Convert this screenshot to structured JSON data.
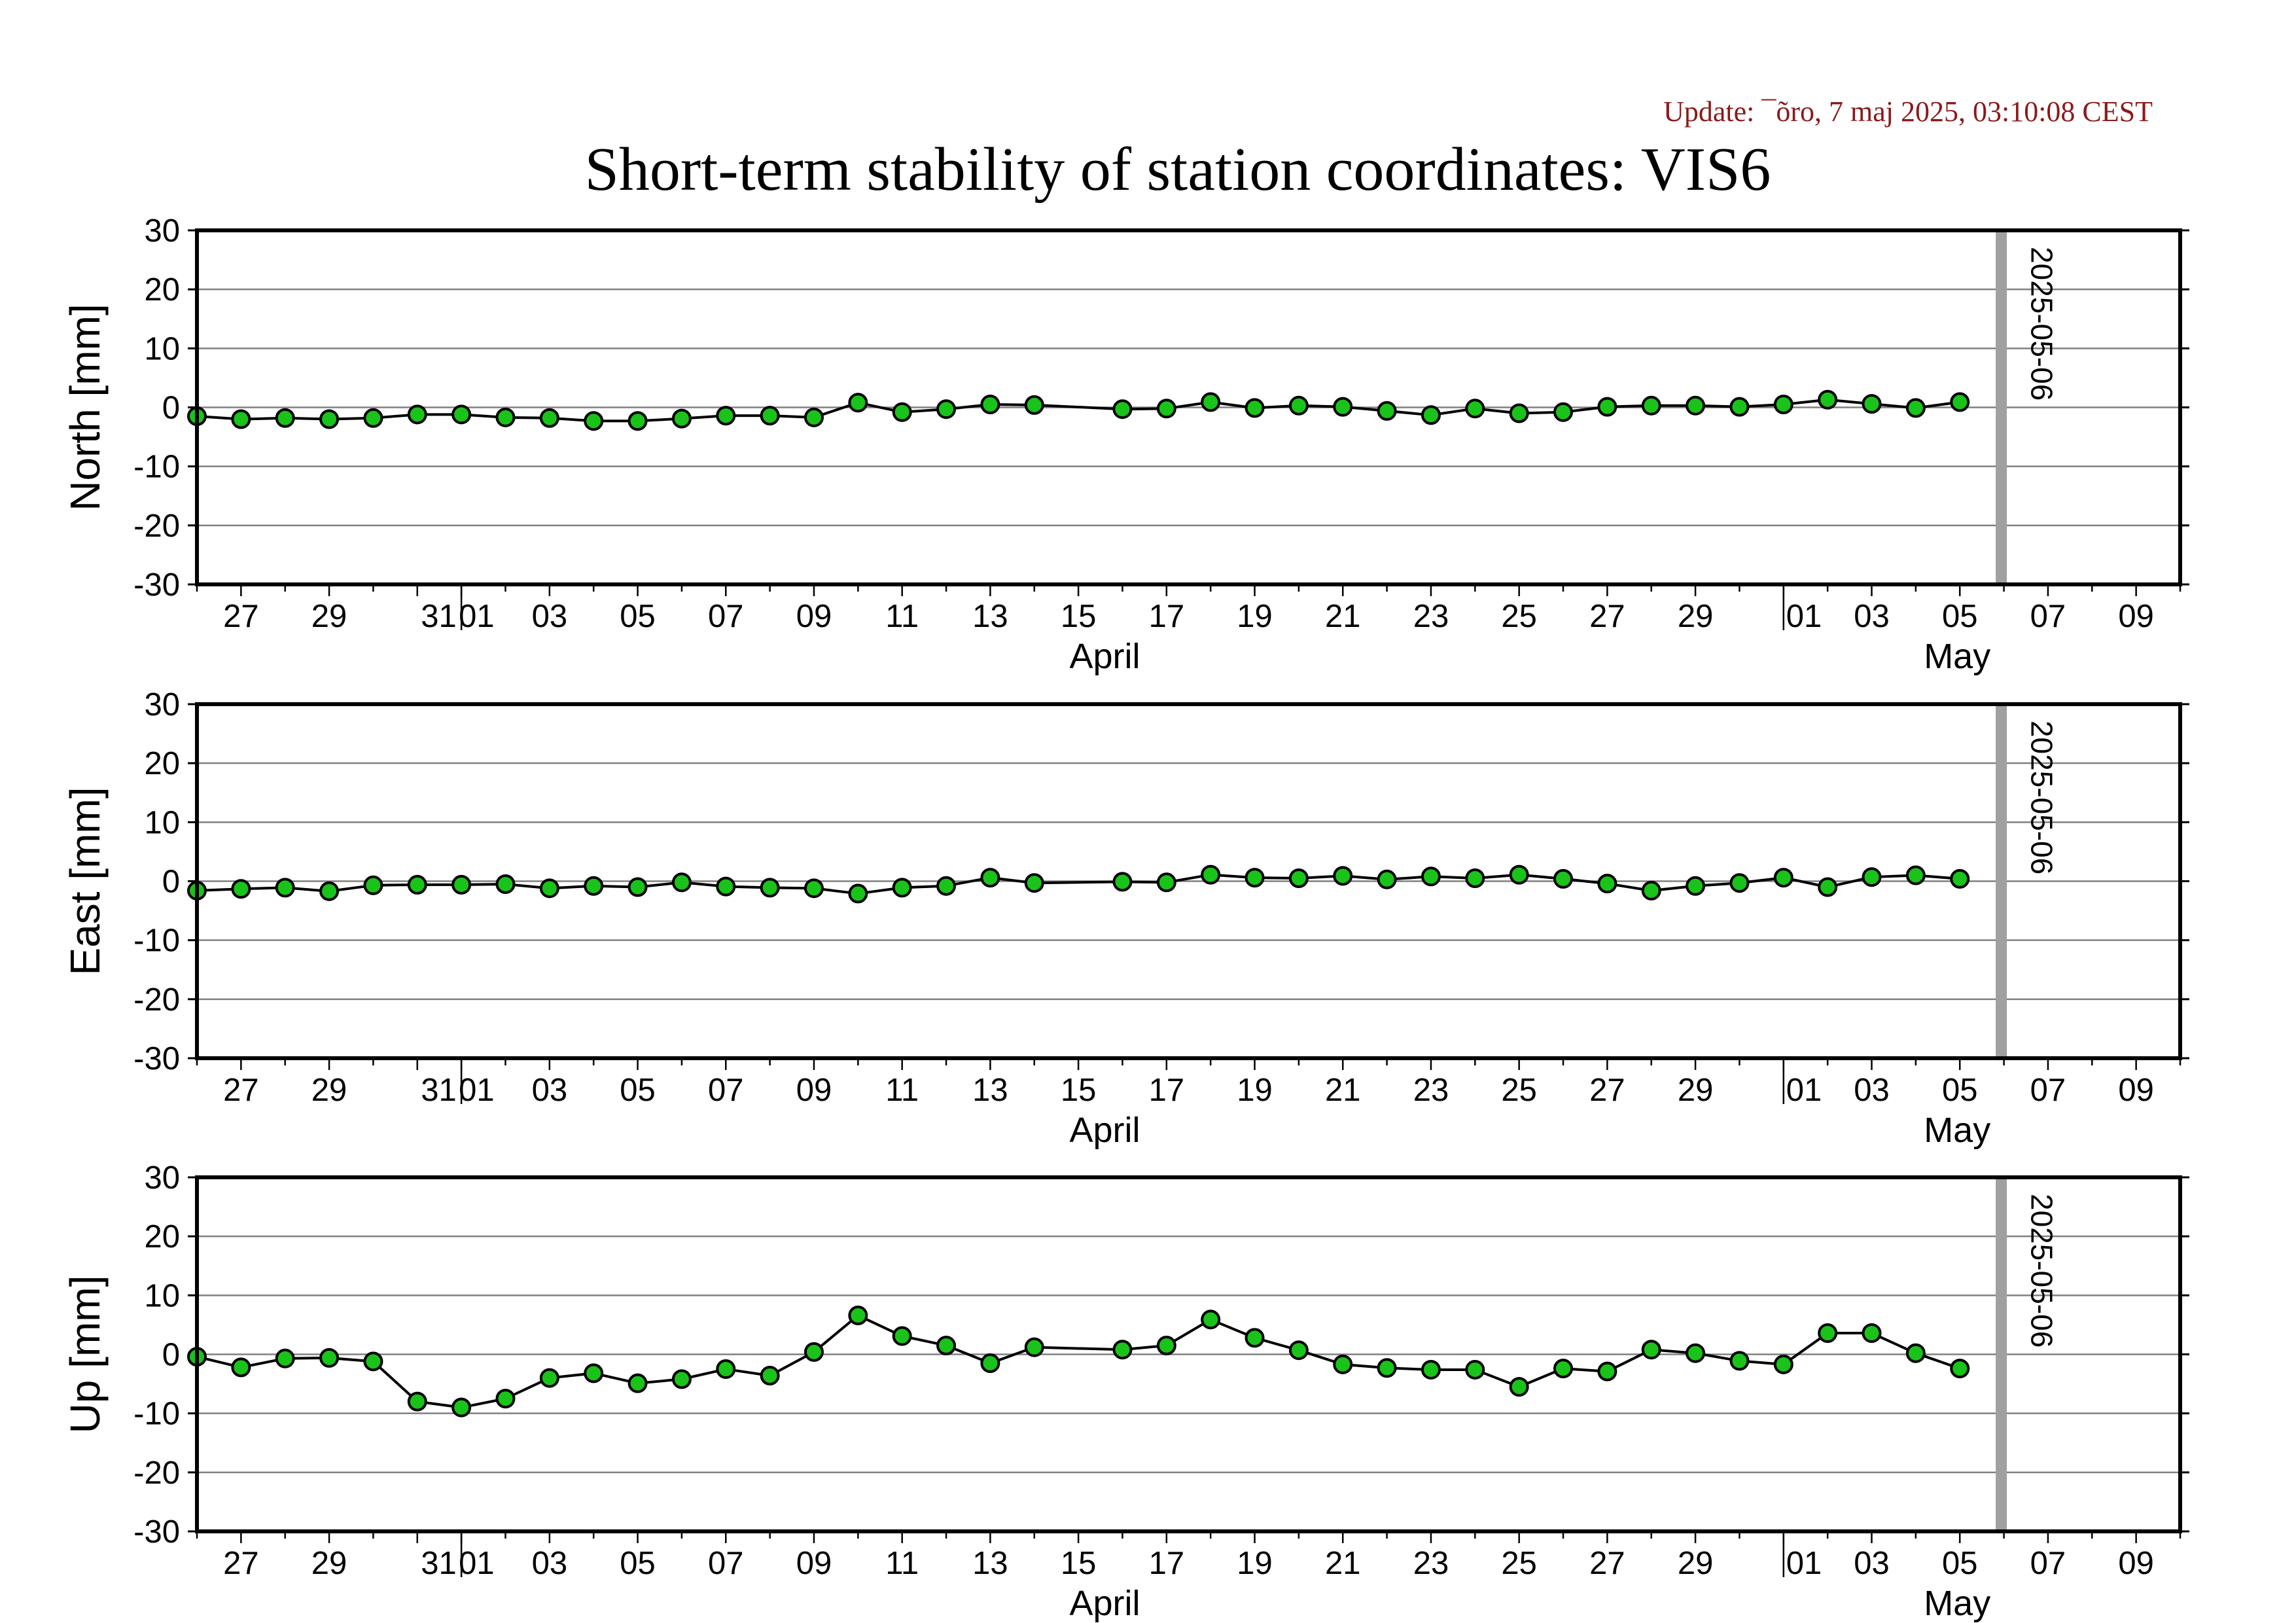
{
  "header": {
    "update_text": "Update: ¯õro, 7 maj 2025, 03:10:08 CEST",
    "title": "Short-term stability of station coordinates: VIS6"
  },
  "colors": {
    "marker_fill": "#19c319",
    "marker_stroke": "#000000",
    "line": "#000000",
    "grid": "#808080",
    "current_date_bar": "#a0a0a0",
    "update_text": "#8b1a1a"
  },
  "chart_data": [
    {
      "type": "line",
      "ylabel": "North [mm]",
      "ylim": [
        -30,
        30
      ],
      "yticks": [
        30,
        20,
        10,
        0,
        -10,
        -20,
        -30
      ],
      "xlim": [
        "2025-03-26",
        "2025-05-10"
      ],
      "x_tick_labels": [
        "27",
        "29",
        "31",
        "01",
        "03",
        "05",
        "07",
        "09",
        "11",
        "13",
        "15",
        "17",
        "19",
        "21",
        "23",
        "25",
        "27",
        "29",
        "01",
        "03",
        "05",
        "07",
        "09"
      ],
      "month_labels": [
        "April",
        "May"
      ],
      "current_date_marker": "2025-05-06",
      "grid": true,
      "series": [
        {
          "x": [
            "2025-03-26",
            "2025-03-27",
            "2025-03-28",
            "2025-03-29",
            "2025-03-30",
            "2025-03-31",
            "2025-04-01",
            "2025-04-02",
            "2025-04-03",
            "2025-04-04",
            "2025-04-05",
            "2025-04-06",
            "2025-04-07",
            "2025-04-08",
            "2025-04-09",
            "2025-04-10",
            "2025-04-11",
            "2025-04-12",
            "2025-04-13",
            "2025-04-14",
            "2025-04-16",
            "2025-04-17",
            "2025-04-18",
            "2025-04-19",
            "2025-04-20",
            "2025-04-21",
            "2025-04-22",
            "2025-04-23",
            "2025-04-24",
            "2025-04-25",
            "2025-04-26",
            "2025-04-27",
            "2025-04-28",
            "2025-04-29",
            "2025-04-30",
            "2025-05-01",
            "2025-05-02",
            "2025-05-03",
            "2025-05-04",
            "2025-05-05"
          ],
          "values": [
            -1.5,
            -2.0,
            -1.8,
            -2.0,
            -1.8,
            -1.2,
            -1.2,
            -1.7,
            -1.8,
            -2.3,
            -2.3,
            -1.9,
            -1.4,
            -1.4,
            -1.7,
            0.8,
            -0.8,
            -0.3,
            0.5,
            0.4,
            -0.3,
            -0.2,
            0.9,
            -0.1,
            0.3,
            0.1,
            -0.6,
            -1.3,
            -0.2,
            -1.0,
            -0.8,
            0.1,
            0.3,
            0.3,
            0.1,
            0.5,
            1.3,
            0.6,
            -0.1,
            0.9
          ]
        }
      ]
    },
    {
      "type": "line",
      "ylabel": "East [mm]",
      "ylim": [
        -30,
        30
      ],
      "yticks": [
        30,
        20,
        10,
        0,
        -10,
        -20,
        -30
      ],
      "xlim": [
        "2025-03-26",
        "2025-05-10"
      ],
      "x_tick_labels": [
        "27",
        "29",
        "31",
        "01",
        "03",
        "05",
        "07",
        "09",
        "11",
        "13",
        "15",
        "17",
        "19",
        "21",
        "23",
        "25",
        "27",
        "29",
        "01",
        "03",
        "05",
        "07",
        "09"
      ],
      "month_labels": [
        "April",
        "May"
      ],
      "current_date_marker": "2025-05-06",
      "grid": true,
      "series": [
        {
          "x": [
            "2025-03-26",
            "2025-03-27",
            "2025-03-28",
            "2025-03-29",
            "2025-03-30",
            "2025-03-31",
            "2025-04-01",
            "2025-04-02",
            "2025-04-03",
            "2025-04-04",
            "2025-04-05",
            "2025-04-06",
            "2025-04-07",
            "2025-04-08",
            "2025-04-09",
            "2025-04-10",
            "2025-04-11",
            "2025-04-12",
            "2025-04-13",
            "2025-04-14",
            "2025-04-16",
            "2025-04-17",
            "2025-04-18",
            "2025-04-19",
            "2025-04-20",
            "2025-04-21",
            "2025-04-22",
            "2025-04-23",
            "2025-04-24",
            "2025-04-25",
            "2025-04-26",
            "2025-04-27",
            "2025-04-28",
            "2025-04-29",
            "2025-04-30",
            "2025-05-01",
            "2025-05-02",
            "2025-05-03",
            "2025-05-04",
            "2025-05-05"
          ],
          "values": [
            -1.6,
            -1.3,
            -1.1,
            -1.7,
            -0.7,
            -0.6,
            -0.6,
            -0.5,
            -1.2,
            -0.8,
            -1.0,
            -0.2,
            -0.9,
            -1.1,
            -1.2,
            -2.1,
            -1.1,
            -0.8,
            0.6,
            -0.3,
            -0.1,
            -0.2,
            1.1,
            0.6,
            0.5,
            0.9,
            0.3,
            0.8,
            0.5,
            1.1,
            0.4,
            -0.4,
            -1.6,
            -0.8,
            -0.3,
            0.6,
            -1.0,
            0.7,
            1.0,
            0.4
          ]
        }
      ]
    },
    {
      "type": "line",
      "ylabel": "Up [mm]",
      "ylim": [
        -30,
        30
      ],
      "yticks": [
        30,
        20,
        10,
        0,
        -10,
        -20,
        -30
      ],
      "xlim": [
        "2025-03-26",
        "2025-05-10"
      ],
      "x_tick_labels": [
        "27",
        "29",
        "31",
        "01",
        "03",
        "05",
        "07",
        "09",
        "11",
        "13",
        "15",
        "17",
        "19",
        "21",
        "23",
        "25",
        "27",
        "29",
        "01",
        "03",
        "05",
        "07",
        "09"
      ],
      "month_labels": [
        "April",
        "May"
      ],
      "current_date_marker": "2025-05-06",
      "grid": true,
      "series": [
        {
          "x": [
            "2025-03-26",
            "2025-03-27",
            "2025-03-28",
            "2025-03-29",
            "2025-03-30",
            "2025-03-31",
            "2025-04-01",
            "2025-04-02",
            "2025-04-03",
            "2025-04-04",
            "2025-04-05",
            "2025-04-06",
            "2025-04-07",
            "2025-04-08",
            "2025-04-09",
            "2025-04-10",
            "2025-04-11",
            "2025-04-12",
            "2025-04-13",
            "2025-04-14",
            "2025-04-16",
            "2025-04-17",
            "2025-04-18",
            "2025-04-19",
            "2025-04-20",
            "2025-04-21",
            "2025-04-22",
            "2025-04-23",
            "2025-04-24",
            "2025-04-25",
            "2025-04-26",
            "2025-04-27",
            "2025-04-28",
            "2025-04-29",
            "2025-04-30",
            "2025-05-01",
            "2025-05-02",
            "2025-05-03",
            "2025-05-04",
            "2025-05-05"
          ],
          "values": [
            -0.4,
            -2.2,
            -0.7,
            -0.6,
            -1.2,
            -8.0,
            -9.0,
            -7.5,
            -4.0,
            -3.2,
            -4.9,
            -4.2,
            -2.5,
            -3.6,
            0.4,
            6.6,
            3.1,
            1.5,
            -1.5,
            1.2,
            0.8,
            1.5,
            5.9,
            2.8,
            0.7,
            -1.7,
            -2.3,
            -2.6,
            -2.6,
            -5.5,
            -2.4,
            -2.9,
            0.8,
            0.2,
            -1.1,
            -1.7,
            3.6,
            3.6,
            0.2,
            -2.4
          ]
        }
      ]
    }
  ]
}
